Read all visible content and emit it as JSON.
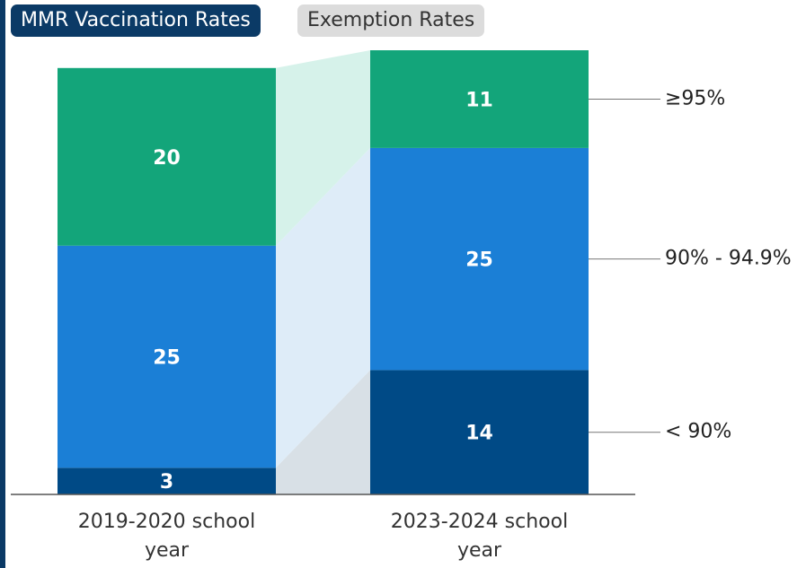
{
  "tabs": [
    {
      "label": "MMR Vaccination Rates",
      "active": true
    },
    {
      "label": "Exemption Rates",
      "active": false
    }
  ],
  "chart_data": {
    "type": "stacked_bar",
    "categories": [
      "2019-2020 school year",
      "2023-2024 school year"
    ],
    "series": [
      {
        "name": "< 90%",
        "color": "#004a86",
        "link_color": "#d8e0e6",
        "values": [
          3,
          14
        ]
      },
      {
        "name": "90% - 94.9%",
        "color": "#1b7fd6",
        "link_color": "#deecf8",
        "values": [
          25,
          25
        ]
      },
      {
        "name": "≥95%",
        "color": "#13a57a",
        "link_color": "#d6f2ea",
        "values": [
          20,
          11
        ]
      }
    ],
    "ylim": [
      0,
      50
    ]
  }
}
